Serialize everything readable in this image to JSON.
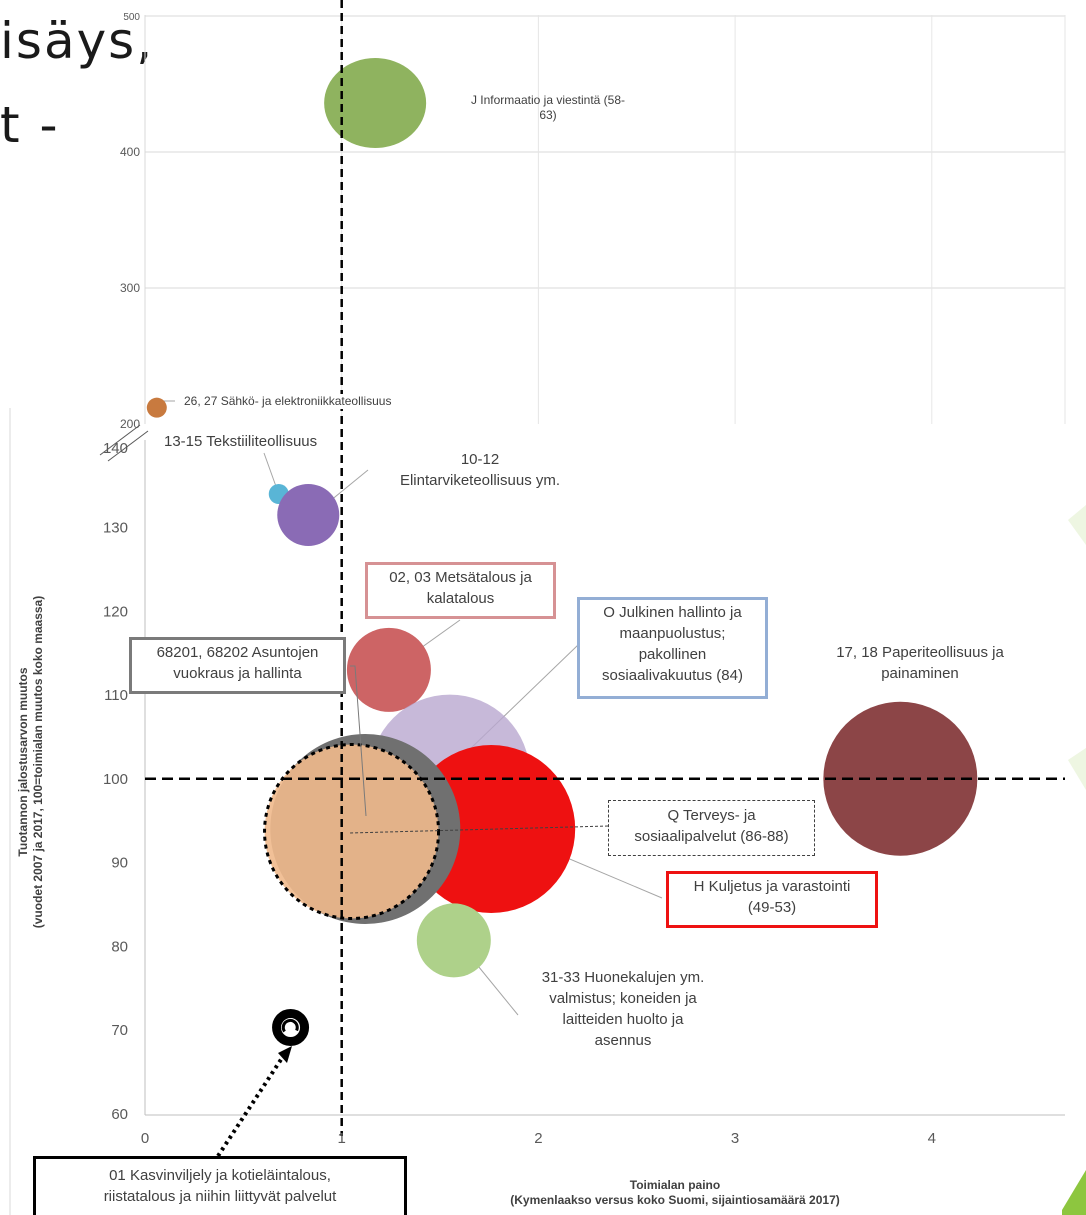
{
  "slide_title_fragments": {
    "line1": "isäys,",
    "line2": "t -"
  },
  "chart_data": {
    "type": "bubble",
    "xlabel": "Toimialan paino",
    "xlabel_sub": "(Kymenlaakso versus koko Suomi, sijaintiosamäärä 2017)",
    "ylabel": "Tuotannon jalostusarvon muutos",
    "ylabel_sub": "(vuodet 2007 ja 2017, 100=toimialan muutos koko maassa)",
    "xlim": [
      0,
      4.7
    ],
    "x_ticks": [
      "0",
      "1",
      "2",
      "3",
      "4"
    ],
    "y_ticks_lower": [
      "60",
      "70",
      "80",
      "90",
      "100",
      "110",
      "120",
      "130",
      "140"
    ],
    "y_ticks_upper": [
      "200",
      "300",
      "400",
      "500"
    ],
    "axis_break": true,
    "reference_lines": {
      "x": 1,
      "y": 100
    },
    "series": [
      {
        "name": "J Informaatio ja viestintä (58-63)",
        "x": 1.17,
        "y": 436,
        "size": 51,
        "color": "#8fb35f"
      },
      {
        "name": "26, 27 Sähkö- ja elektroniikkateollisuus",
        "x": 0.06,
        "y": 212,
        "size": 10,
        "color": "#c87a3f"
      },
      {
        "name": "13-15 Tekstiiliteollisuus",
        "x": 0.68,
        "y": 134,
        "size": 10,
        "color": "#59b5d6"
      },
      {
        "name": "10-12 Elintarviketeollisuus ym.",
        "x": 0.83,
        "y": 131.5,
        "size": 31,
        "color": "#8a6bb5"
      },
      {
        "name": "02, 03 Metsätalous ja kalatalous",
        "x": 1.24,
        "y": 113,
        "size": 42,
        "color": "#cd6465"
      },
      {
        "name": "O Julkinen hallinto ja maanpuolustus; pakollinen sosiaalivakuutus (84)",
        "x": 1.55,
        "y": 100.5,
        "size": 80,
        "color": "#b9a8cf"
      },
      {
        "name": "17, 18 Paperiteollisuus ja painaminen",
        "x": 3.84,
        "y": 100,
        "size": 77,
        "color": "#8c4547"
      },
      {
        "name": "H Kuljetus ja varastointi (49-53)",
        "x": 1.76,
        "y": 94,
        "size": 84,
        "color": "#ee1111"
      },
      {
        "name": "68201, 68202 Asuntojen vuokraus ja hallinta",
        "x": 1.12,
        "y": 94,
        "size": 95,
        "color": "#707070"
      },
      {
        "name": "Q Terveys- ja sosiaalipalvelut (86-88)",
        "x": 1.05,
        "y": 93.7,
        "size": 87,
        "color": "#f0b98c"
      },
      {
        "name": "31-33 Huonekalujen ym. valmistus; koneiden ja laitteiden huolto ja asennus",
        "x": 1.57,
        "y": 80.7,
        "size": 37,
        "color": "#aed18a"
      },
      {
        "name": "01 Kasvinviljely ja kotieläintalous, riistatalous ja niihin liittyvät palvelut",
        "x": 0.74,
        "y": 70.3,
        "size": 14,
        "color": "#ffffff"
      }
    ]
  },
  "labels": {
    "j": "J Informaatio ja viestintä (58-\n63)",
    "sahko": "26, 27 Sähkö- ja elektroniikkateollisuus",
    "tekstiili": "13-15 Tekstiiliteollisuus",
    "elintarvike": "10-12\nElintarviketeollisuus ym.",
    "metsa": "02, 03 Metsätalous ja\nkalatalous",
    "julkinen": "O Julkinen hallinto ja\nmaanpuolustus;\npakollinen\nsosiaalivakuutus (84)",
    "paperi": "17, 18 Paperiteollisuus ja\npainaminen",
    "asunto": "68201, 68202 Asuntojen\nvuokraus ja hallinta",
    "terveys": "Q Terveys- ja\nsosiaalipalvelut (86-88)",
    "kuljetus": "H Kuljetus ja varastointi\n(49-53)",
    "huonekalu": "31-33 Huonekalujen ym.\nvalmistus; koneiden ja\nlaitteiden huolto ja\nasennus",
    "kasvi": "01 Kasvinviljely ja kotieläintalous,\nriistatalous ja niihin liittyvät palvelut"
  },
  "colors": {
    "box_metsa": "#d69294",
    "box_julkinen": "#93aed5",
    "box_asunto": "#7a7a7a",
    "box_kuljetus": "#ee1111",
    "box_kasvi": "#000000",
    "deco_green": "#8dc63f"
  }
}
